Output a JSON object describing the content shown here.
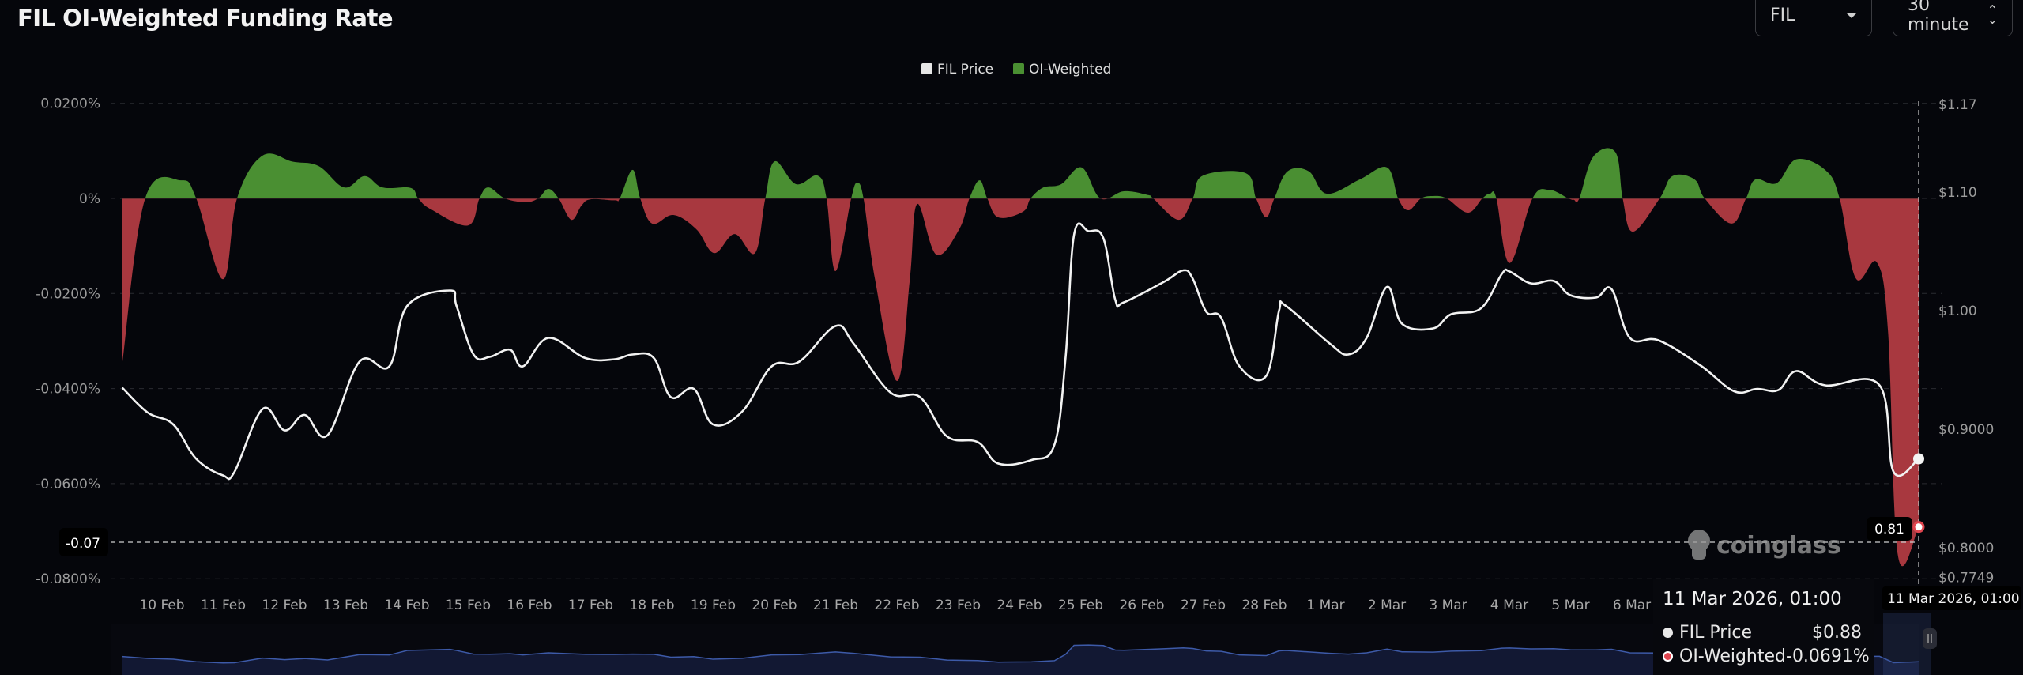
{
  "header": {
    "title": "FIL OI-Weighted Funding Rate",
    "symbol_select": "FIL",
    "interval_select": "30 minute"
  },
  "tooltip": {
    "date": "11 Mar 2026, 01:00",
    "rows": [
      {
        "label": "FIL Price",
        "value": "$0.88",
        "color": "#e8e8e8"
      },
      {
        "label": "OI-Weighted",
        "value": "-0.0691%",
        "color": "#e0454f"
      }
    ]
  },
  "crosshair": {
    "left_label": "-0.07",
    "right_label": "0.81",
    "bottom_label": "11 Mar 2026, 01:00"
  },
  "watermark": "coinglass",
  "colors": {
    "background": "#05060b",
    "positive": "#4a8f32",
    "negative": "#a8383f",
    "price_line": "#f2f2f2",
    "navigator_line": "#3d5aa8",
    "navigator_fill": "#121833"
  },
  "chart_data": {
    "type": "area",
    "legend": {
      "position": "top-center",
      "items": [
        {
          "label": "FIL Price",
          "color": "#e6e6e6"
        },
        {
          "label": "OI-Weighted",
          "color": "#4a8f32"
        }
      ]
    },
    "grid": true,
    "x_ticks": [
      "10 Feb",
      "11 Feb",
      "12 Feb",
      "13 Feb",
      "14 Feb",
      "15 Feb",
      "16 Feb",
      "17 Feb",
      "18 Feb",
      "19 Feb",
      "20 Feb",
      "21 Feb",
      "22 Feb",
      "23 Feb",
      "24 Feb",
      "25 Feb",
      "26 Feb",
      "27 Feb",
      "28 Feb",
      "1 Mar",
      "2 Mar",
      "3 Mar",
      "4 Mar",
      "5 Mar",
      "6 Mar"
    ],
    "y_left": {
      "ticks": [
        0.02,
        0,
        -0.02,
        -0.04,
        -0.06,
        -0.08
      ],
      "tick_labels": [
        "0.0200%",
        "0%",
        "-0.0200%",
        "-0.0400%",
        "-0.0600%",
        "-0.0800%"
      ],
      "range": [
        -0.08,
        0.02
      ]
    },
    "y_right": {
      "ticks": [
        1.17,
        1.1,
        1.0,
        0.9,
        0.8,
        0.7749
      ],
      "tick_labels": [
        "$1.17",
        "$1.10",
        "$1.00",
        "$0.9000",
        "$0.8000",
        "$0.7749"
      ],
      "range": [
        0.7749,
        1.17
      ]
    },
    "series": [
      {
        "name": "OI-Weighted",
        "axis": "left",
        "unit": "%",
        "points": [
          [
            "2026-02-09 17:00",
            -0.0348
          ],
          [
            "2026-02-10 02:00",
            0
          ],
          [
            "2026-02-10 16:00",
            0.0038
          ],
          [
            "2026-02-10 22:00",
            0
          ],
          [
            "2026-02-11 08:30",
            -0.017
          ],
          [
            "2026-02-11 14:00",
            0
          ],
          [
            "2026-02-12 00:00",
            0.009
          ],
          [
            "2026-02-12 12:00",
            0.0077
          ],
          [
            "2026-02-12 22:00",
            0.0068
          ],
          [
            "2026-02-13 08:00",
            0.0023
          ],
          [
            "2026-02-13 16:00",
            0.0047
          ],
          [
            "2026-02-13 23:00",
            0.0023
          ],
          [
            "2026-02-14 10:00",
            0.0022
          ],
          [
            "2026-02-14 13:00",
            0
          ],
          [
            "2026-02-14 18:00",
            -0.0023
          ],
          [
            "2026-02-15 08:30",
            -0.0057
          ],
          [
            "2026-02-15 13:00",
            0
          ],
          [
            "2026-02-15 16:30",
            0.0023
          ],
          [
            "2026-02-15 23:00",
            0
          ],
          [
            "2026-02-16 07:00",
            -0.0008
          ],
          [
            "2026-02-16 12:00",
            0
          ],
          [
            "2026-02-16 16:00",
            0.002
          ],
          [
            "2026-02-16 20:00",
            0
          ],
          [
            "2026-02-17 01:00",
            -0.0045
          ],
          [
            "2026-02-17 05:00",
            -0.0015
          ],
          [
            "2026-02-17 08:30",
            -0.0002
          ],
          [
            "2026-02-17 18:00",
            -0.0004
          ],
          [
            "2026-02-17 20:00",
            0
          ],
          [
            "2026-02-18 01:00",
            0.006
          ],
          [
            "2026-02-18 04:00",
            0
          ],
          [
            "2026-02-18 08:40",
            -0.0053
          ],
          [
            "2026-02-18 17:00",
            -0.0035
          ],
          [
            "2026-02-19 02:00",
            -0.0065
          ],
          [
            "2026-02-19 09:00",
            -0.0115
          ],
          [
            "2026-02-19 17:00",
            -0.0075
          ],
          [
            "2026-02-20 01:00",
            -0.0115
          ],
          [
            "2026-02-20 05:00",
            0
          ],
          [
            "2026-02-20 08:40",
            0.0078
          ],
          [
            "2026-02-20 17:00",
            0.003
          ],
          [
            "2026-02-21 01:30",
            0.0048
          ],
          [
            "2026-02-21 05:00",
            0
          ],
          [
            "2026-02-21 08:30",
            -0.0153
          ],
          [
            "2026-02-21 14:40",
            0
          ],
          [
            "2026-02-21 17:00",
            0.0032
          ],
          [
            "2026-02-21 19:30",
            0
          ],
          [
            "2026-02-22 00:00",
            -0.017
          ],
          [
            "2026-02-22 08:40",
            -0.0384
          ],
          [
            "2026-02-22 13:40",
            -0.017
          ],
          [
            "2026-02-22 16:30",
            -0.0012
          ],
          [
            "2026-02-23 00:00",
            -0.0118
          ],
          [
            "2026-02-23 09:00",
            -0.0065
          ],
          [
            "2026-02-23 13:00",
            0
          ],
          [
            "2026-02-23 17:00",
            0.0038
          ],
          [
            "2026-02-23 20:00",
            0
          ],
          [
            "2026-02-24 00:20",
            -0.004
          ],
          [
            "2026-02-24 10:00",
            -0.0028
          ],
          [
            "2026-02-24 13:00",
            0
          ],
          [
            "2026-02-24 18:00",
            0.0023
          ],
          [
            "2026-02-25 01:00",
            0.003
          ],
          [
            "2026-02-25 09:00",
            0.0065
          ],
          [
            "2026-02-25 16:20",
            0
          ],
          [
            "2026-02-26 01:30",
            0.0015
          ],
          [
            "2026-02-26 11:00",
            0.0007
          ],
          [
            "2026-02-26 13:00",
            0
          ],
          [
            "2026-02-26 23:00",
            -0.0045
          ],
          [
            "2026-02-27 04:30",
            0
          ],
          [
            "2026-02-27 08:30",
            0.0048
          ],
          [
            "2026-02-28 01:20",
            0.0053
          ],
          [
            "2026-02-28 05:20",
            0
          ],
          [
            "2026-02-28 09:20",
            -0.004
          ],
          [
            "2026-02-28 12:30",
            0
          ],
          [
            "2026-02-28 17:40",
            0.0057
          ],
          [
            "2026-03-01 02:00",
            0.0057
          ],
          [
            "2026-03-01 09:00",
            0.001
          ],
          [
            "2026-03-01 22:00",
            0.004
          ],
          [
            "2026-03-02 08:40",
            0.0065
          ],
          [
            "2026-03-02 13:00",
            0
          ],
          [
            "2026-03-02 17:00",
            -0.0025
          ],
          [
            "2026-03-02 22:00",
            0
          ],
          [
            "2026-03-03 02:40",
            0.0005
          ],
          [
            "2026-03-03 08:00",
            0
          ],
          [
            "2026-03-03 16:20",
            -0.003
          ],
          [
            "2026-03-03 22:00",
            0
          ],
          [
            "2026-03-04 01:00",
            0.001
          ],
          [
            "2026-03-04 03:30",
            0
          ],
          [
            "2026-03-04 08:40",
            -0.0136
          ],
          [
            "2026-03-04 17:40",
            0
          ],
          [
            "2026-03-05 00:10",
            0.0018
          ],
          [
            "2026-03-05 07:40",
            0
          ],
          [
            "2026-03-05 09:50",
            -0.0003
          ],
          [
            "2026-03-05 12:00",
            0
          ],
          [
            "2026-03-05 17:30",
            0.0088
          ],
          [
            "2026-03-06 02:10",
            0.0097
          ],
          [
            "2026-03-06 05:00",
            0
          ],
          [
            "2026-03-06 09:00",
            -0.007
          ],
          [
            "2026-03-06 19:30",
            0
          ],
          [
            "2026-03-07 00:30",
            0.0047
          ],
          [
            "2026-03-07 09:10",
            0.004
          ],
          [
            "2026-03-07 13:10",
            0
          ],
          [
            "2026-03-07 23:40",
            -0.0053
          ],
          [
            "2026-03-08 05:20",
            0
          ],
          [
            "2026-03-08 09:00",
            0.004
          ],
          [
            "2026-03-08 17:20",
            0.0032
          ],
          [
            "2026-03-09 01:00",
            0.0082
          ],
          [
            "2026-03-09 12:20",
            0.006
          ],
          [
            "2026-03-09 18:00",
            0
          ],
          [
            "2026-03-10 00:20",
            -0.0168
          ],
          [
            "2026-03-10 08:40",
            -0.0135
          ],
          [
            "2026-03-10 13:00",
            -0.0281
          ],
          [
            "2026-03-10 16:50",
            -0.075
          ],
          [
            "2026-03-11 01:00",
            -0.0691
          ]
        ]
      },
      {
        "name": "FIL Price",
        "axis": "right",
        "unit": "$",
        "points": [
          [
            "2026-02-09 17:00",
            0.935
          ],
          [
            "2026-02-10 03:00",
            0.914
          ],
          [
            "2026-02-10 13:00",
            0.904
          ],
          [
            "2026-02-10 22:00",
            0.875
          ],
          [
            "2026-02-11 08:30",
            0.861
          ],
          [
            "2026-02-11 13:00",
            0.864
          ],
          [
            "2026-02-12 00:00",
            0.917
          ],
          [
            "2026-02-12 08:40",
            0.899
          ],
          [
            "2026-02-12 16:30",
            0.912
          ],
          [
            "2026-02-13 01:30",
            0.895
          ],
          [
            "2026-02-13 14:00",
            0.957
          ],
          [
            "2026-02-14 01:40",
            0.953
          ],
          [
            "2026-02-14 08:40",
            1.004
          ],
          [
            "2026-02-15 01:30",
            1.017
          ],
          [
            "2026-02-15 04:00",
            1.004
          ],
          [
            "2026-02-15 10:40",
            0.963
          ],
          [
            "2026-02-15 17:00",
            0.961
          ],
          [
            "2026-02-16 01:00",
            0.967
          ],
          [
            "2026-02-16 06:00",
            0.953
          ],
          [
            "2026-02-16 16:00",
            0.977
          ],
          [
            "2026-02-17 06:30",
            0.96
          ],
          [
            "2026-02-17 18:00",
            0.959
          ],
          [
            "2026-02-18 01:00",
            0.963
          ],
          [
            "2026-02-18 09:20",
            0.96
          ],
          [
            "2026-02-18 16:00",
            0.927
          ],
          [
            "2026-02-19 01:00",
            0.934
          ],
          [
            "2026-02-19 08:30",
            0.904
          ],
          [
            "2026-02-19 20:00",
            0.915
          ],
          [
            "2026-02-20 07:30",
            0.953
          ],
          [
            "2026-02-20 18:20",
            0.957
          ],
          [
            "2026-02-21 08:30",
            0.987
          ],
          [
            "2026-02-21 15:40",
            0.972
          ],
          [
            "2026-02-22 06:00",
            0.931
          ],
          [
            "2026-02-22 17:40",
            0.927
          ],
          [
            "2026-02-23 04:10",
            0.894
          ],
          [
            "2026-02-23 16:20",
            0.889
          ],
          [
            "2026-02-24 00:20",
            0.871
          ],
          [
            "2026-02-24 13:20",
            0.874
          ],
          [
            "2026-02-24 22:20",
            0.887
          ],
          [
            "2026-02-25 02:40",
            0.96
          ],
          [
            "2026-02-25 06:00",
            1.064
          ],
          [
            "2026-02-25 11:40",
            1.067
          ],
          [
            "2026-02-25 17:30",
            1.061
          ],
          [
            "2026-02-25 22:10",
            1.009
          ],
          [
            "2026-02-26 01:30",
            1.007
          ],
          [
            "2026-02-26 17:00",
            1.024
          ],
          [
            "2026-02-27 00:50",
            1.034
          ],
          [
            "2026-02-27 04:30",
            1.027
          ],
          [
            "2026-02-27 09:50",
            0.999
          ],
          [
            "2026-02-27 15:40",
            0.994
          ],
          [
            "2026-02-27 22:50",
            0.953
          ],
          [
            "2026-02-28 09:20",
            0.945
          ],
          [
            "2026-02-28 14:20",
            1.0
          ],
          [
            "2026-02-28 17:00",
            1.004
          ],
          [
            "2026-03-01 10:20",
            0.972
          ],
          [
            "2026-03-01 17:30",
            0.963
          ],
          [
            "2026-03-02 00:40",
            0.977
          ],
          [
            "2026-03-02 08:40",
            1.02
          ],
          [
            "2026-03-02 14:30",
            0.989
          ],
          [
            "2026-03-03 02:40",
            0.985
          ],
          [
            "2026-03-03 09:50",
            0.997
          ],
          [
            "2026-03-03 21:30",
            1.002
          ],
          [
            "2026-03-04 05:40",
            1.031
          ],
          [
            "2026-03-04 08:40",
            1.033
          ],
          [
            "2026-03-04 17:00",
            1.023
          ],
          [
            "2026-03-05 02:00",
            1.025
          ],
          [
            "2026-03-05 08:30",
            1.013
          ],
          [
            "2026-03-05 18:30",
            1.011
          ],
          [
            "2026-03-06 00:40",
            1.018
          ],
          [
            "2026-03-06 07:50",
            0.977
          ],
          [
            "2026-03-06 19:00",
            0.975
          ],
          [
            "2026-03-07 11:20",
            0.954
          ],
          [
            "2026-03-08 00:40",
            0.932
          ],
          [
            "2026-03-08 09:40",
            0.934
          ],
          [
            "2026-03-08 18:00",
            0.933
          ],
          [
            "2026-03-09 01:00",
            0.949
          ],
          [
            "2026-03-09 12:20",
            0.937
          ],
          [
            "2026-03-10 09:40",
            0.937
          ],
          [
            "2026-03-10 15:10",
            0.864
          ],
          [
            "2026-03-11 01:00",
            0.875
          ]
        ]
      }
    ]
  }
}
